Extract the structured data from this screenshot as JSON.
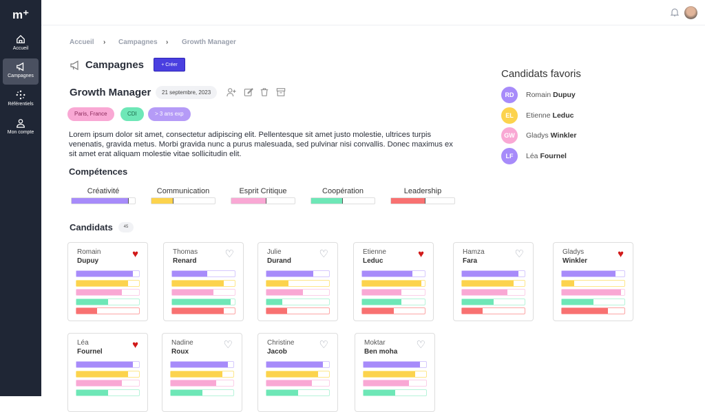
{
  "app": {
    "logo": "m⁺"
  },
  "sidebar": {
    "items": [
      {
        "label": "Accueil",
        "icon": "home-icon"
      },
      {
        "label": "Campagnes",
        "icon": "megaphone-icon",
        "active": true
      },
      {
        "label": "Référentiels",
        "icon": "grid-dots-icon"
      },
      {
        "label": "Mon compte",
        "icon": "user-icon"
      }
    ]
  },
  "breadcrumb": [
    "Accueil",
    "Campagnes",
    "Growth Manager"
  ],
  "page": {
    "title": "Campagnes",
    "create_label": "+   Créer"
  },
  "campaign": {
    "title": "Growth Manager",
    "date": "21 septembre, 2023",
    "tags": [
      "Paris, France",
      "CDI",
      "> 3 ans exp"
    ],
    "description": "Lorem ipsum dolor sit amet, consectetur adipiscing elit. Pellentesque sit amet justo molestie, ultrices turpis venenatis, gravida metus. Morbi gravida nunc a purus malesuada, sed pulvinar nisi convallis. Donec maximus ex sit amet erat aliquam molestie vitae sollicitudin elit."
  },
  "skills": {
    "title": "Compétences",
    "items": [
      {
        "label": "Créativité",
        "value": 0.9,
        "color": "#a78bfa"
      },
      {
        "label": "Communication",
        "value": 0.35,
        "color": "#fcd34d"
      },
      {
        "label": "Esprit Critique",
        "value": 0.55,
        "color": "#f9a8d4"
      },
      {
        "label": "Coopération",
        "value": 0.5,
        "color": "#6ee7b7"
      },
      {
        "label": "Leadership",
        "value": 0.54,
        "color": "#f87171"
      }
    ]
  },
  "candidates": {
    "title": "Candidats",
    "count": "45",
    "items": [
      {
        "first": "Romain",
        "last": "Dupuy",
        "fav": true,
        "scores": [
          0.9,
          0.82,
          0.72,
          0.5,
          0.33
        ]
      },
      {
        "first": "Thomas",
        "last": "Renard",
        "fav": false,
        "scores": [
          0.56,
          0.82,
          0.66,
          0.93,
          0.82
        ]
      },
      {
        "first": "Julie",
        "last": "Durand",
        "fav": false,
        "scores": [
          0.75,
          0.35,
          0.58,
          0.25,
          0.33
        ]
      },
      {
        "first": "Etienne",
        "last": "Leduc",
        "fav": true,
        "scores": [
          0.8,
          0.94,
          0.63,
          0.63,
          0.51
        ]
      },
      {
        "first": "Hamza",
        "last": "Fara",
        "fav": false,
        "scores": [
          0.9,
          0.82,
          0.72,
          0.5,
          0.33
        ]
      },
      {
        "first": "Gladys",
        "last": "Winkler",
        "fav": true,
        "scores": [
          0.86,
          0.2,
          0.95,
          0.5,
          0.74
        ]
      },
      {
        "first": "Léa",
        "last": "Fournel",
        "fav": true,
        "scores": [
          0.9,
          0.82,
          0.73,
          0.5
        ]
      },
      {
        "first": "Nadine",
        "last": "Roux",
        "fav": false,
        "scores": [
          0.91,
          0.82,
          0.72,
          0.5
        ]
      },
      {
        "first": "Christine",
        "last": "Jacob",
        "fav": false,
        "scores": [
          0.9,
          0.82,
          0.72,
          0.5
        ]
      },
      {
        "first": "Moktar",
        "last": "Ben moha",
        "fav": false,
        "scores": [
          0.9,
          0.82,
          0.72,
          0.5
        ]
      }
    ]
  },
  "favorites": {
    "title": "Candidats favoris",
    "items": [
      {
        "initials": "RD",
        "first": "Romain",
        "last": "Dupuy",
        "color": "#a78bfa"
      },
      {
        "initials": "EL",
        "first": "Etienne",
        "last": "Leduc",
        "color": "#fcd34d"
      },
      {
        "initials": "GW",
        "first": "Gladys",
        "last": "Winkler",
        "color": "#f9a8d4"
      },
      {
        "initials": "LF",
        "first": "Léa",
        "last": "Fournel",
        "color": "#a78bfa"
      }
    ]
  }
}
